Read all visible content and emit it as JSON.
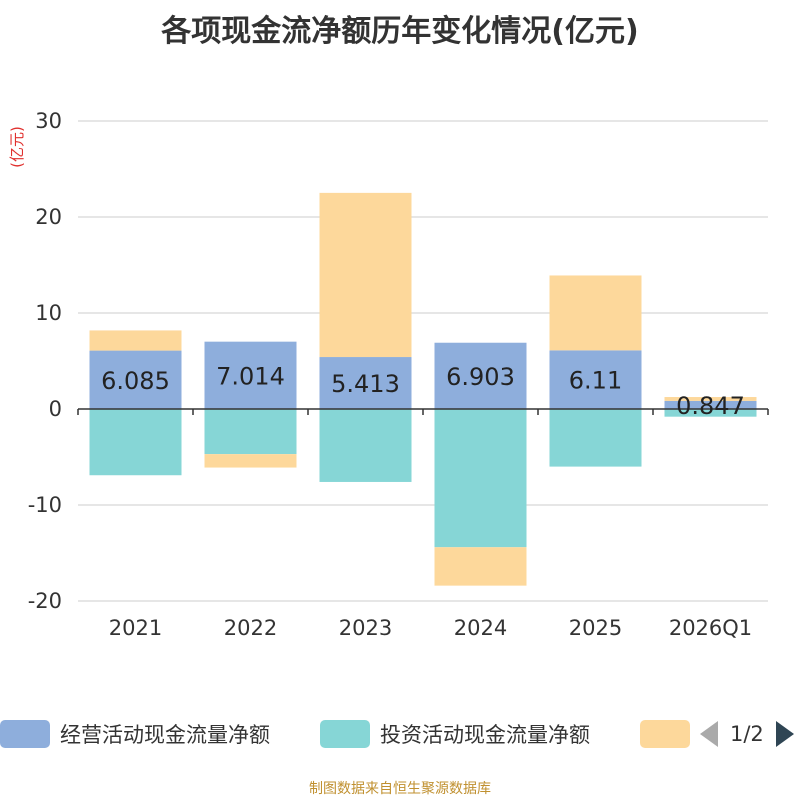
{
  "title": "各项现金流净额历年变化情况(亿元)",
  "footer": "制图数据来自恒生聚源数据库",
  "chart_data": {
    "type": "bar",
    "stacked": true,
    "title": "各项现金流净额历年变化情况(亿元)",
    "ylabel": "(亿元)",
    "xlabel": "",
    "ylim": [
      -20,
      30
    ],
    "yticks": [
      30,
      20,
      10,
      0,
      -10,
      -20
    ],
    "grid": true,
    "legend_position": "bottom",
    "categories": [
      "2021",
      "2022",
      "2023",
      "2024",
      "2025",
      "2026Q1"
    ],
    "series": [
      {
        "name": "经营活动现金流量净额",
        "color": "#8eaedc",
        "values": [
          6.085,
          7.014,
          5.413,
          6.903,
          6.11,
          0.847
        ],
        "labels": [
          "6.085",
          "7.014",
          "5.413",
          "6.903",
          "6.11",
          "0.847"
        ]
      },
      {
        "name": "投资活动现金流量净额",
        "color": "#86d6d6",
        "values": [
          -6.9,
          -4.7,
          -7.6,
          -14.4,
          -6.0,
          -0.8
        ]
      },
      {
        "name": "",
        "color": "#fdd89b",
        "values": [
          2.1,
          -1.4,
          17.1,
          -4.0,
          7.8,
          0.4
        ]
      }
    ]
  },
  "legend": {
    "items": [
      {
        "name": "经营活动现金流量净额",
        "color": "#8eaedc"
      },
      {
        "name": "投资活动现金流量净额",
        "color": "#86d6d6"
      },
      {
        "name": "",
        "color": "#fdd89b"
      }
    ],
    "page": "1/2"
  }
}
